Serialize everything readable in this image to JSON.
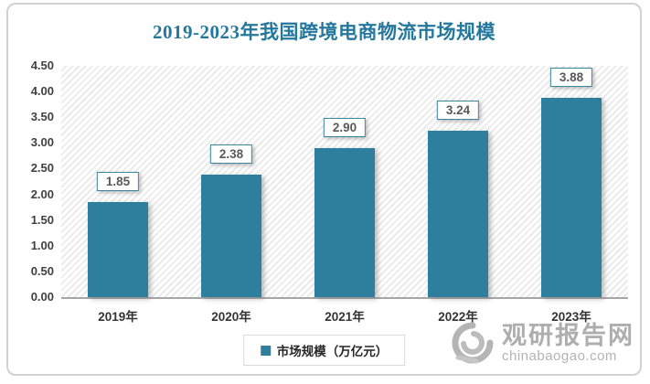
{
  "chart_data": {
    "type": "bar",
    "title": "2019-2023年我国跨境电商物流市场规模",
    "categories": [
      "2019年",
      "2020年",
      "2021年",
      "2022年",
      "2023年"
    ],
    "values": [
      1.85,
      2.38,
      2.9,
      3.24,
      3.88
    ],
    "data_labels": [
      "1.85",
      "2.38",
      "2.90",
      "3.24",
      "3.88"
    ],
    "series_name": "市场规模（万亿元）",
    "xlabel": "",
    "ylabel": "",
    "ylim": [
      0,
      4.5
    ],
    "ytick_labels": [
      "4.50",
      "4.00",
      "3.50",
      "3.00",
      "2.50",
      "2.00",
      "1.50",
      "1.00",
      "0.50",
      "0.00"
    ],
    "grid": false,
    "legend_position": "bottom",
    "plot_background": "diagonal-hatch",
    "bar_color": "#2E7E9E"
  },
  "legend": {
    "label": "市场规模（万亿元）",
    "marker_color": "#2E7E9E"
  },
  "watermark": {
    "site_name": "观研报告网",
    "site_url": "chinabaogao.com"
  },
  "colors": {
    "bar": "#2E7E9E",
    "title_text": "#24789E",
    "label_box_border": "#3A86A3",
    "axis_line": "#a6a6a6",
    "watermark": "#b3b3b3"
  }
}
